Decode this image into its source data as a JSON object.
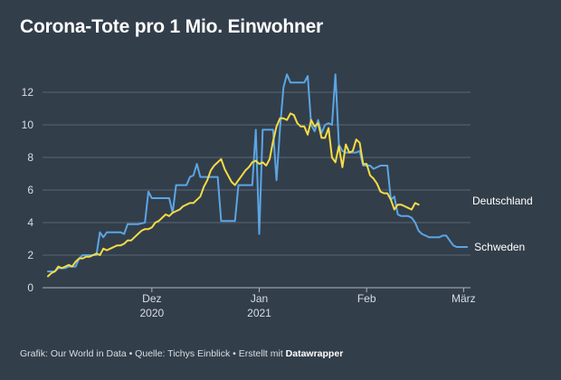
{
  "chart_data": {
    "type": "line",
    "title": "Corona-Tote pro 1 Mio. Einwohner",
    "xlabel": "",
    "ylabel": "",
    "ylim": [
      0,
      13.5
    ],
    "yticks": [
      0,
      2,
      4,
      6,
      8,
      10,
      12
    ],
    "xticks": [
      {
        "day": 31,
        "label": "Dez",
        "sublabel": "2020"
      },
      {
        "day": 62,
        "label": "Jan",
        "sublabel": "2021"
      },
      {
        "day": 93,
        "label": "Feb",
        "sublabel": ""
      },
      {
        "day": 121,
        "label": "März",
        "sublabel": ""
      }
    ],
    "xlim": [
      1,
      123
    ],
    "series": [
      {
        "name": "Schweden",
        "color": "#5aa6e3",
        "points": [
          [
            1,
            1.0
          ],
          [
            3,
            1.0
          ],
          [
            4,
            1.2
          ],
          [
            6,
            1.2
          ],
          [
            7,
            1.3
          ],
          [
            9,
            1.3
          ],
          [
            10,
            1.8
          ],
          [
            11,
            2.0
          ],
          [
            14,
            2.0
          ],
          [
            15,
            2.0
          ],
          [
            16,
            3.4
          ],
          [
            17,
            3.1
          ],
          [
            18,
            3.4
          ],
          [
            22,
            3.4
          ],
          [
            23,
            3.3
          ],
          [
            24,
            3.9
          ],
          [
            27,
            3.9
          ],
          [
            29,
            4.0
          ],
          [
            30,
            5.9
          ],
          [
            31,
            5.5
          ],
          [
            36,
            5.5
          ],
          [
            37,
            4.6
          ],
          [
            38,
            6.3
          ],
          [
            41,
            6.3
          ],
          [
            42,
            6.8
          ],
          [
            43,
            6.9
          ],
          [
            44,
            7.6
          ],
          [
            45,
            6.8
          ],
          [
            50,
            6.8
          ],
          [
            51,
            4.1
          ],
          [
            54,
            4.1
          ],
          [
            55,
            4.1
          ],
          [
            56,
            6.3
          ],
          [
            58,
            6.3
          ],
          [
            60,
            6.3
          ],
          [
            61,
            9.7
          ],
          [
            62,
            3.3
          ],
          [
            63,
            9.7
          ],
          [
            66,
            9.7
          ],
          [
            67,
            6.6
          ],
          [
            68,
            9.8
          ],
          [
            69,
            12.3
          ],
          [
            70,
            13.1
          ],
          [
            71,
            12.6
          ],
          [
            72,
            12.6
          ],
          [
            74,
            12.6
          ],
          [
            75,
            12.6
          ],
          [
            76,
            13.0
          ],
          [
            77,
            10.0
          ],
          [
            78,
            9.6
          ],
          [
            79,
            10.3
          ],
          [
            80,
            9.5
          ],
          [
            81,
            10.0
          ],
          [
            82,
            10.1
          ],
          [
            83,
            10.0
          ],
          [
            84,
            13.1
          ],
          [
            85,
            8.8
          ],
          [
            86,
            8.4
          ],
          [
            87,
            8.3
          ],
          [
            88,
            8.3
          ],
          [
            90,
            8.3
          ],
          [
            91,
            8.4
          ],
          [
            92,
            7.5
          ],
          [
            94,
            7.5
          ],
          [
            95,
            7.3
          ],
          [
            97,
            7.5
          ],
          [
            99,
            7.5
          ],
          [
            100,
            5.4
          ],
          [
            101,
            5.6
          ],
          [
            102,
            4.5
          ],
          [
            103,
            4.4
          ],
          [
            104,
            4.4
          ],
          [
            105,
            4.4
          ],
          [
            106,
            4.3
          ],
          [
            107,
            4.0
          ],
          [
            108,
            3.5
          ],
          [
            109,
            3.3
          ],
          [
            110,
            3.2
          ],
          [
            111,
            3.1
          ],
          [
            114,
            3.1
          ],
          [
            115,
            3.2
          ],
          [
            116,
            3.2
          ],
          [
            117,
            2.9
          ],
          [
            118,
            2.6
          ],
          [
            119,
            2.5
          ],
          [
            121,
            2.5
          ],
          [
            122,
            2.5
          ]
        ]
      },
      {
        "name": "Deutschland",
        "color": "#f5dc45",
        "points": [
          [
            1,
            0.7
          ],
          [
            2,
            0.9
          ],
          [
            3,
            1.0
          ],
          [
            4,
            1.3
          ],
          [
            5,
            1.2
          ],
          [
            6,
            1.3
          ],
          [
            7,
            1.4
          ],
          [
            8,
            1.3
          ],
          [
            9,
            1.6
          ],
          [
            10,
            1.8
          ],
          [
            11,
            1.8
          ],
          [
            12,
            1.9
          ],
          [
            13,
            1.9
          ],
          [
            14,
            2.0
          ],
          [
            15,
            2.1
          ],
          [
            16,
            2.0
          ],
          [
            17,
            2.4
          ],
          [
            18,
            2.3
          ],
          [
            19,
            2.4
          ],
          [
            20,
            2.5
          ],
          [
            21,
            2.6
          ],
          [
            22,
            2.6
          ],
          [
            23,
            2.7
          ],
          [
            24,
            2.9
          ],
          [
            25,
            2.9
          ],
          [
            26,
            3.1
          ],
          [
            27,
            3.3
          ],
          [
            28,
            3.5
          ],
          [
            29,
            3.6
          ],
          [
            30,
            3.6
          ],
          [
            31,
            3.7
          ],
          [
            32,
            4.0
          ],
          [
            33,
            4.1
          ],
          [
            34,
            4.3
          ],
          [
            35,
            4.5
          ],
          [
            36,
            4.4
          ],
          [
            37,
            4.6
          ],
          [
            38,
            4.7
          ],
          [
            39,
            4.8
          ],
          [
            40,
            5.0
          ],
          [
            41,
            5.1
          ],
          [
            42,
            5.2
          ],
          [
            43,
            5.2
          ],
          [
            44,
            5.4
          ],
          [
            45,
            5.6
          ],
          [
            46,
            6.2
          ],
          [
            47,
            6.6
          ],
          [
            48,
            7.2
          ],
          [
            49,
            7.5
          ],
          [
            50,
            7.7
          ],
          [
            51,
            7.9
          ],
          [
            52,
            7.3
          ],
          [
            53,
            6.9
          ],
          [
            54,
            6.5
          ],
          [
            55,
            6.3
          ],
          [
            56,
            6.6
          ],
          [
            57,
            6.9
          ],
          [
            58,
            7.2
          ],
          [
            59,
            7.4
          ],
          [
            60,
            7.7
          ],
          [
            61,
            7.8
          ],
          [
            62,
            7.6
          ],
          [
            63,
            7.7
          ],
          [
            64,
            7.5
          ],
          [
            65,
            7.9
          ],
          [
            66,
            9.0
          ],
          [
            67,
            9.9
          ],
          [
            68,
            10.4
          ],
          [
            69,
            10.4
          ],
          [
            70,
            10.3
          ],
          [
            71,
            10.7
          ],
          [
            72,
            10.6
          ],
          [
            73,
            10.1
          ],
          [
            74,
            9.9
          ],
          [
            75,
            9.9
          ],
          [
            76,
            9.4
          ],
          [
            77,
            10.3
          ],
          [
            78,
            9.9
          ],
          [
            79,
            10.1
          ],
          [
            80,
            9.2
          ],
          [
            81,
            9.2
          ],
          [
            82,
            9.8
          ],
          [
            83,
            8.0
          ],
          [
            84,
            7.7
          ],
          [
            85,
            8.7
          ],
          [
            86,
            7.4
          ],
          [
            87,
            8.8
          ],
          [
            88,
            8.3
          ],
          [
            89,
            8.4
          ],
          [
            90,
            9.1
          ],
          [
            91,
            8.9
          ],
          [
            92,
            7.6
          ],
          [
            93,
            7.6
          ],
          [
            94,
            6.9
          ],
          [
            95,
            6.7
          ],
          [
            96,
            6.4
          ],
          [
            97,
            5.9
          ],
          [
            98,
            5.8
          ],
          [
            99,
            5.8
          ],
          [
            100,
            5.4
          ],
          [
            101,
            4.8
          ],
          [
            102,
            5.1
          ],
          [
            103,
            5.1
          ],
          [
            104,
            5.0
          ],
          [
            105,
            4.9
          ],
          [
            106,
            4.8
          ],
          [
            107,
            5.2
          ],
          [
            108,
            5.1
          ]
        ]
      }
    ]
  },
  "footer": {
    "text": "Grafik: Our World in Data • Quelle: Tichys Einblick • Erstellt mit ",
    "brand": "Datawrapper"
  }
}
